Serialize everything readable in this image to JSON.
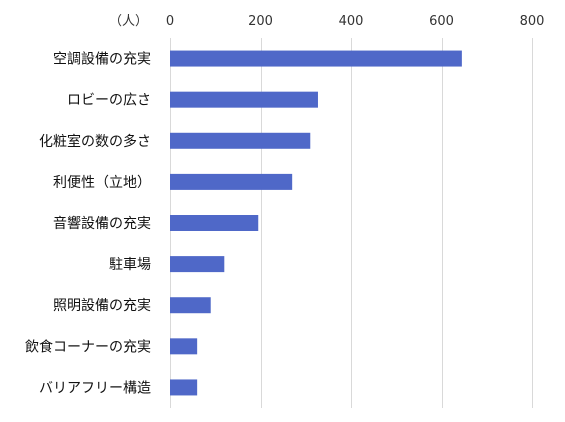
{
  "chart_data": {
    "type": "bar",
    "orientation": "horizontal",
    "unit_label": "（人）",
    "categories": [
      "空調設備の充実",
      "ロビーの広さ",
      "化粧室の数の多さ",
      "利便性（立地）",
      "音響設備の充実",
      "駐車場",
      "照明設備の充実",
      "飲食コーナーの充実",
      "バリアフリー構造"
    ],
    "values": [
      645,
      327,
      310,
      270,
      195,
      120,
      90,
      60,
      60
    ],
    "xlim": [
      0,
      800
    ],
    "xticks": [
      0,
      200,
      400,
      600,
      800
    ],
    "xtick_labels": [
      "0",
      "200",
      "400",
      "600",
      "800"
    ],
    "axis_position": "top",
    "grid": true,
    "bar_color": "#4f68c8",
    "grid_color": "#d9d9d9"
  }
}
